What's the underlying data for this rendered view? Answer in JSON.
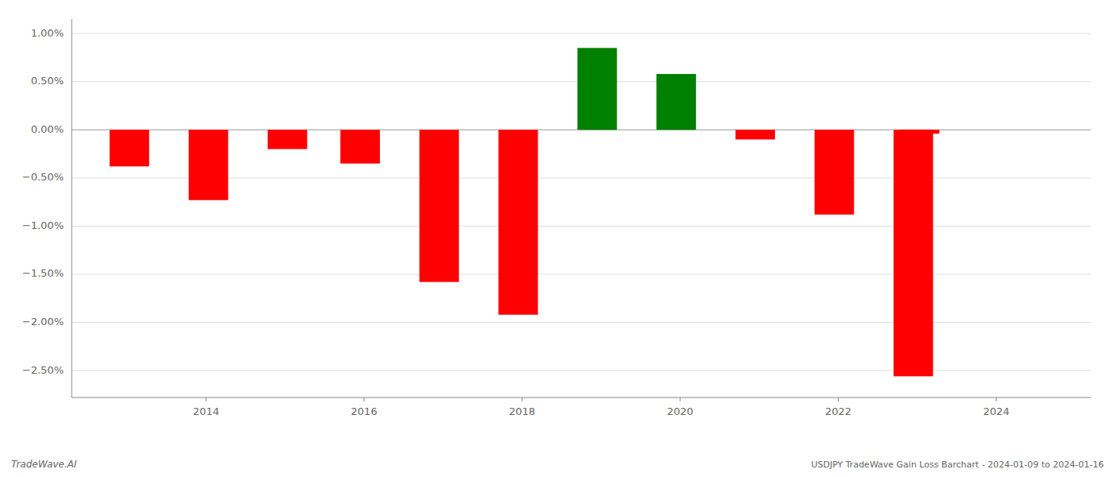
{
  "chart_data": {
    "type": "bar",
    "title": "USDJPY TradeWave Gain Loss Barchart - 2024-01-09 to 2024-01-16",
    "annotations": [
      "TradeWave.AI"
    ],
    "x": [
      2013.03,
      2014.03,
      2015.03,
      2015.95,
      2016.95,
      2017.95,
      2018.95,
      2019.95,
      2020.95,
      2021.95,
      2022.95,
      2023.03
    ],
    "values": [
      -0.38,
      -0.73,
      -0.2,
      -0.35,
      -1.58,
      -1.92,
      0.85,
      0.58,
      -0.1,
      -0.88,
      -2.56,
      -0.04
    ],
    "colors": [
      "#ff0000",
      "#ff0000",
      "#ff0000",
      "#ff0000",
      "#ff0000",
      "#ff0000",
      "#008000",
      "#008000",
      "#ff0000",
      "#ff0000",
      "#ff0000",
      "#ff0000"
    ],
    "xlim": [
      2012.3,
      2025.2
    ],
    "xticks": [
      2014,
      2016,
      2018,
      2020,
      2022,
      2024
    ],
    "ylim": [
      -2.78,
      1.15
    ],
    "yticks": [
      {
        "value": -2.5,
        "label": "−2.50%"
      },
      {
        "value": -2.0,
        "label": "−2.00%"
      },
      {
        "value": -1.5,
        "label": "−1.50%"
      },
      {
        "value": -1.0,
        "label": "−1.00%"
      },
      {
        "value": -0.5,
        "label": "−0.50%"
      },
      {
        "value": 0.0,
        "label": "0.00%"
      },
      {
        "value": 0.5,
        "label": "0.50%"
      },
      {
        "value": 1.0,
        "label": "1.00%"
      }
    ],
    "grid": true
  }
}
